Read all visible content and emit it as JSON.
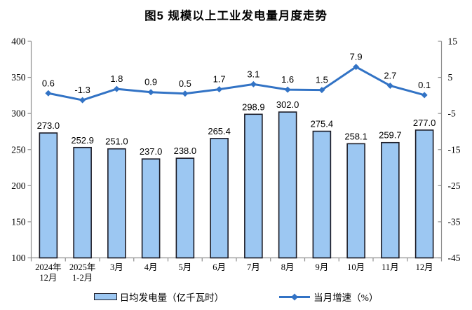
{
  "chart_data": {
    "type": "combo",
    "title": "图5  规模以上工业发电量月度走势",
    "categories": [
      "2024年\n12月",
      "2025年\n1-2月",
      "3月",
      "4月",
      "5月",
      "6月",
      "7月",
      "8月",
      "9月",
      "10月",
      "11月",
      "12月"
    ],
    "series": [
      {
        "name": "日均发电量（亿千瓦时）",
        "type": "bar",
        "axis": "left",
        "values": [
          273.0,
          252.9,
          251.0,
          237.0,
          238.0,
          265.4,
          298.9,
          302.0,
          275.4,
          258.1,
          259.7,
          277.0
        ],
        "fill": "#9CC7F2",
        "stroke": "#1B1B26"
      },
      {
        "name": "当月增速（%）",
        "type": "line",
        "axis": "right",
        "values": [
          0.6,
          -1.3,
          1.8,
          0.9,
          0.5,
          1.7,
          3.1,
          1.6,
          1.5,
          7.9,
          2.7,
          0.1
        ],
        "color": "#3273C5",
        "marker": "diamond"
      }
    ],
    "axes": {
      "left": {
        "min": 100,
        "max": 400,
        "ticks": [
          400,
          350,
          300,
          250,
          200,
          150,
          100
        ]
      },
      "right": {
        "min": -45,
        "max": 15,
        "ticks": [
          15,
          5,
          -5,
          -15,
          -25,
          -35,
          -45
        ]
      }
    },
    "value_label_decimals": 1,
    "grid": false,
    "legend_position": "bottom",
    "colors": {
      "axis_line": "#8F8F8F",
      "label_text": "#000000"
    }
  }
}
